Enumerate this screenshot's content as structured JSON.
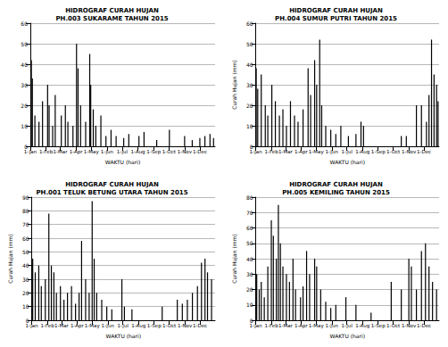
{
  "chart_data": [
    {
      "type": "bar",
      "title": "HIDROGRAF CURAH HUJAN\nPH.003 SUKARAME TAHUN 2015",
      "xlabel": "WAKTU (hari)",
      "color": "#000000",
      "grid": true,
      "x": [
        3,
        5,
        10,
        18,
        25,
        35,
        38,
        45,
        50,
        62,
        70,
        75,
        85,
        92,
        95,
        100,
        110,
        118,
        120,
        125,
        130,
        140,
        150,
        160,
        170,
        185,
        195,
        215,
        225,
        250,
        275,
        305,
        320,
        335,
        345,
        355,
        362
      ],
      "values": [
        42,
        33,
        15,
        12,
        22,
        30,
        20,
        10,
        25,
        15,
        20,
        12,
        10,
        50,
        38,
        20,
        12,
        45,
        30,
        18,
        10,
        15,
        5,
        8,
        5,
        4,
        6,
        5,
        7,
        3,
        8,
        5,
        3,
        4,
        5,
        6,
        4
      ],
      "xlim": [
        1,
        365
      ],
      "xticks": [
        {
          "value": 1,
          "label": "1-Jan"
        },
        {
          "value": 32,
          "label": "1-Feb"
        },
        {
          "value": 60,
          "label": "1-Mar"
        },
        {
          "value": 91,
          "label": "1-Apr"
        },
        {
          "value": 121,
          "label": "1-May"
        },
        {
          "value": 152,
          "label": "1-Jun"
        },
        {
          "value": 182,
          "label": "1-Jul"
        },
        {
          "value": 213,
          "label": "1-Aug"
        },
        {
          "value": 244,
          "label": "1-Sep"
        },
        {
          "value": 274,
          "label": "1-Oct"
        },
        {
          "value": 305,
          "label": "1-Nov"
        },
        {
          "value": 335,
          "label": "1-Dec"
        }
      ],
      "ylim": [
        0,
        60
      ],
      "yticks": [
        0,
        10,
        20,
        30,
        40,
        50,
        60
      ]
    },
    {
      "type": "bar",
      "title": "HIDROGRAF CURAH HUJAN\nPH.004 SUMUR PUTRI TAHUN 2015",
      "xlabel": "WAKTU (hari)",
      "ylabel": "Curah Hujan (mm)",
      "color": "#000000",
      "grid": true,
      "x": [
        2,
        5,
        12,
        20,
        25,
        33,
        40,
        48,
        55,
        62,
        70,
        78,
        85,
        95,
        105,
        110,
        118,
        122,
        128,
        132,
        140,
        150,
        160,
        170,
        185,
        200,
        210,
        215,
        290,
        300,
        320,
        330,
        340,
        345,
        350,
        355,
        360,
        363
      ],
      "values": [
        38,
        28,
        35,
        20,
        15,
        30,
        22,
        15,
        18,
        10,
        22,
        15,
        12,
        18,
        38,
        25,
        42,
        30,
        52,
        20,
        10,
        8,
        6,
        10,
        5,
        6,
        12,
        10,
        5,
        5,
        20,
        20,
        12,
        25,
        52,
        35,
        30,
        22
      ],
      "xlim": [
        1,
        365
      ],
      "xticks": [
        {
          "value": 1,
          "label": "1-Jan"
        },
        {
          "value": 32,
          "label": "1-Feb"
        },
        {
          "value": 60,
          "label": "1-Mar"
        },
        {
          "value": 91,
          "label": "1-Apr"
        },
        {
          "value": 121,
          "label": "1-May"
        },
        {
          "value": 152,
          "label": "1-Jun"
        },
        {
          "value": 182,
          "label": "1-Jul"
        },
        {
          "value": 213,
          "label": "1-Aug"
        },
        {
          "value": 244,
          "label": "1-Sep"
        },
        {
          "value": 274,
          "label": "1-Oct"
        },
        {
          "value": 305,
          "label": "1-Nov"
        },
        {
          "value": 335,
          "label": "1-Dec"
        }
      ],
      "ylim": [
        0,
        60
      ],
      "yticks": [
        0,
        10,
        20,
        30,
        40,
        50,
        60
      ]
    },
    {
      "type": "bar",
      "title": "HIDROGRAF CURAH HUJAN\nPH.001 TELUK BETUNG UTARA TAHUN 2015",
      "xlabel": "WAKTU (hari)",
      "ylabel": "Curah Hujan (mm)",
      "color": "#000000",
      "grid": true,
      "x": [
        3,
        8,
        15,
        20,
        28,
        35,
        40,
        45,
        50,
        58,
        65,
        72,
        80,
        88,
        95,
        100,
        108,
        115,
        121,
        125,
        130,
        140,
        150,
        160,
        180,
        185,
        200,
        260,
        290,
        300,
        310,
        320,
        330,
        338,
        345,
        350,
        358
      ],
      "values": [
        45,
        35,
        40,
        25,
        30,
        78,
        40,
        35,
        20,
        25,
        15,
        20,
        25,
        12,
        20,
        58,
        30,
        20,
        87,
        45,
        20,
        15,
        10,
        8,
        30,
        10,
        8,
        10,
        15,
        12,
        15,
        20,
        25,
        42,
        45,
        35,
        30
      ],
      "xlim": [
        1,
        365
      ],
      "xticks": [
        {
          "value": 1,
          "label": "1-Jan"
        },
        {
          "value": 32,
          "label": "1-Feb"
        },
        {
          "value": 60,
          "label": "1-Mar"
        },
        {
          "value": 91,
          "label": "1-Apr"
        },
        {
          "value": 121,
          "label": "1-May"
        },
        {
          "value": 152,
          "label": "1-Jun"
        },
        {
          "value": 182,
          "label": "1-Jul"
        },
        {
          "value": 213,
          "label": "1-Aug"
        },
        {
          "value": 244,
          "label": "1-Sep"
        },
        {
          "value": 274,
          "label": "1-Oct"
        },
        {
          "value": 305,
          "label": "1-Nov"
        },
        {
          "value": 335,
          "label": "1-Dec"
        }
      ],
      "ylim": [
        0,
        90
      ],
      "yticks": [
        0,
        10,
        20,
        30,
        40,
        50,
        60,
        70,
        80,
        90
      ]
    },
    {
      "type": "bar",
      "title": "HIDROGRAF CURAH HUJAN\nPH.005 KEMILING TAHUN 2015",
      "xlabel": "WAKTU (hari)",
      "ylabel": "Curah Hujan (mm)",
      "color": "#000000",
      "grid": true,
      "x": [
        3,
        8,
        12,
        18,
        25,
        32,
        36,
        42,
        46,
        50,
        55,
        62,
        68,
        75,
        80,
        90,
        95,
        102,
        108,
        118,
        122,
        130,
        140,
        150,
        160,
        180,
        200,
        230,
        270,
        290,
        305,
        310,
        320,
        330,
        338,
        345,
        352,
        360
      ],
      "values": [
        30,
        20,
        25,
        15,
        35,
        65,
        55,
        40,
        75,
        50,
        35,
        30,
        25,
        40,
        20,
        15,
        22,
        45,
        30,
        40,
        35,
        20,
        12,
        8,
        10,
        15,
        10,
        5,
        25,
        20,
        40,
        35,
        20,
        45,
        50,
        35,
        25,
        20
      ],
      "xlim": [
        1,
        365
      ],
      "xticks": [
        {
          "value": 1,
          "label": "1-Jan"
        },
        {
          "value": 32,
          "label": "1-Feb"
        },
        {
          "value": 60,
          "label": "1-Mar"
        },
        {
          "value": 91,
          "label": "1-Apr"
        },
        {
          "value": 121,
          "label": "1-May"
        },
        {
          "value": 152,
          "label": "1-Jun"
        },
        {
          "value": 182,
          "label": "1-Jul"
        },
        {
          "value": 213,
          "label": "1-Aug"
        },
        {
          "value": 244,
          "label": "1-Sep"
        },
        {
          "value": 274,
          "label": "1-Oct"
        },
        {
          "value": 305,
          "label": "1-Nov"
        },
        {
          "value": 335,
          "label": "1-Dec"
        }
      ],
      "ylim": [
        0,
        80
      ],
      "yticks": [
        0,
        10,
        20,
        30,
        40,
        50,
        60,
        70,
        80
      ]
    }
  ]
}
